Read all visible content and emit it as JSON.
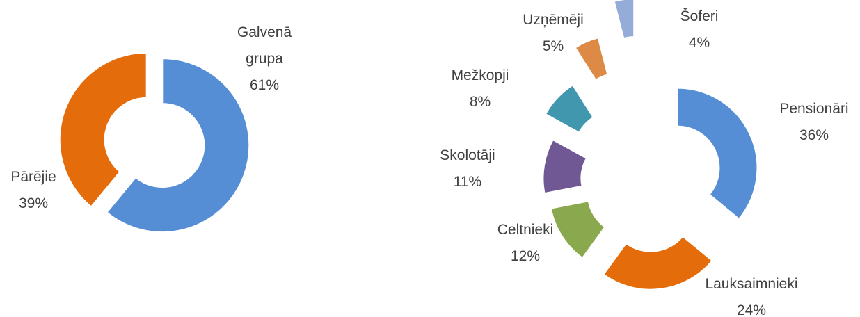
{
  "chart_data": [
    {
      "type": "donut",
      "categories": [
        "Galvenā grupa",
        "Pārējie"
      ],
      "values": [
        61,
        39
      ],
      "value_labels": [
        "61%",
        "39%"
      ],
      "colors": [
        "#558ed5",
        "#e46c0a"
      ]
    },
    {
      "type": "donut",
      "categories": [
        "Pensionāri",
        "Lauksaimnieki",
        "Celtnieki",
        "Skolotāji",
        "Mežkopji",
        "Uzņēmēji",
        "Šoferi"
      ],
      "values": [
        36,
        24,
        12,
        11,
        8,
        5,
        4
      ],
      "value_labels": [
        "36%",
        "24%",
        "12%",
        "11%",
        "8%",
        "5%",
        "4%"
      ],
      "colors": [
        "#558ed5",
        "#e46c0a",
        "#8aa84d",
        "#6f5893",
        "#4197ae",
        "#dd8a46",
        "#95acd9"
      ]
    }
  ]
}
